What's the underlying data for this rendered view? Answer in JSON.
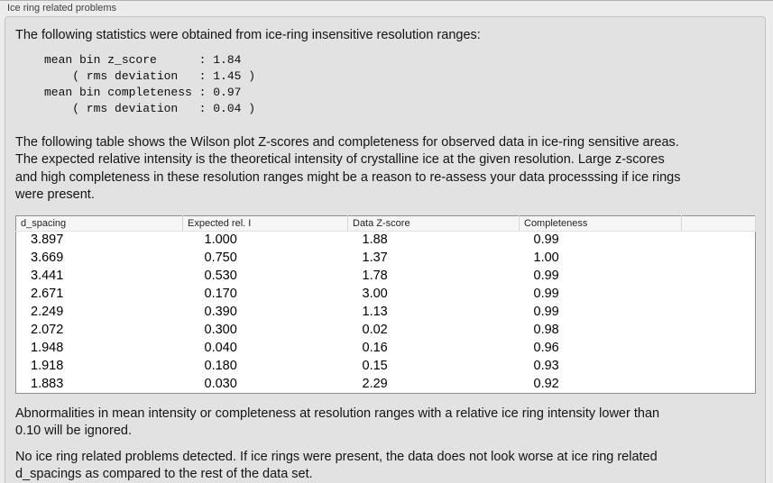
{
  "panel": {
    "title": "Ice ring related problems"
  },
  "intro_text": "The following statistics were obtained from ice-ring insensitive resolution ranges:",
  "summary_stats_block": "mean bin z_score      : 1.84\n    ( rms deviation   : 1.45 )\nmean bin completeness : 0.97\n    ( rms deviation   : 0.04 )",
  "summary_stats": {
    "mean_bin_z_score": "1.84",
    "z_score_rms_deviation": "1.45",
    "mean_bin_completeness": "0.97",
    "completeness_rms_deviation": "0.04"
  },
  "table_description": "The following table shows the Wilson plot Z-scores and completeness for observed data in ice-ring sensitive areas.\nThe expected relative intensity is the theoretical intensity of crystalline ice at the given resolution. Large z-scores\nand high completeness in these resolution ranges might be a reason to re-assess your data processsing if ice rings\nwere present.",
  "table": {
    "columns": [
      "d_spacing",
      "Expected rel. I",
      "Data Z-score",
      "Completeness",
      ""
    ],
    "rows": [
      [
        "3.897",
        "1.000",
        "1.88",
        "0.99"
      ],
      [
        "3.669",
        "0.750",
        "1.37",
        "1.00"
      ],
      [
        "3.441",
        "0.530",
        "1.78",
        "0.99"
      ],
      [
        "2.671",
        "0.170",
        "3.00",
        "0.99"
      ],
      [
        "2.249",
        "0.390",
        "1.13",
        "0.99"
      ],
      [
        "2.072",
        "0.300",
        "0.02",
        "0.98"
      ],
      [
        "1.948",
        "0.040",
        "0.16",
        "0.96"
      ],
      [
        "1.918",
        "0.180",
        "0.15",
        "0.93"
      ],
      [
        "1.883",
        "0.030",
        "2.29",
        "0.92"
      ]
    ]
  },
  "ignore_note": "Abnormalities in mean intensity or completeness at resolution ranges with a relative ice ring intensity lower than\n0.10 will be ignored.",
  "conclusion_text": "No ice ring related problems detected. If ice rings were present, the data does not look worse at ice ring related\nd_spacings as compared to the rest of the data set.",
  "colors": {
    "page_background": "#ececec",
    "panel_background": "#e2e2e2",
    "panel_border": "#c3c3c3",
    "table_border": "#8e8e8e",
    "table_header_background": "#f6f6f6"
  }
}
